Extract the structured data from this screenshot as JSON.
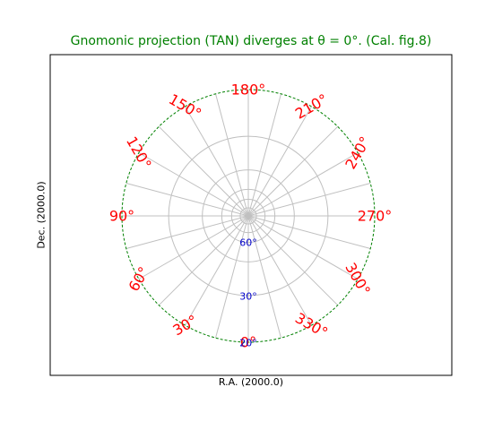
{
  "chart_data": {
    "type": "polar-graticule",
    "title": "Gnomonic projection (TAN) diverges at θ = 0°. (Cal. fig.8)",
    "xlabel": "R.A. (2000.0)",
    "ylabel": "Dec. (2000.0)",
    "projection": "TAN",
    "longitude_meridians_deg": [
      0,
      15,
      30,
      45,
      60,
      75,
      90,
      105,
      120,
      135,
      150,
      165,
      180,
      195,
      210,
      225,
      240,
      255,
      270,
      285,
      300,
      315,
      330,
      345
    ],
    "latitude_circles_deg": [
      80,
      70,
      60,
      45,
      30
    ],
    "border_latitude_deg": 20,
    "longitude_labels": [
      {
        "value": 0,
        "text": "0°"
      },
      {
        "value": 30,
        "text": "30°"
      },
      {
        "value": 60,
        "text": "60°"
      },
      {
        "value": 90,
        "text": "90°"
      },
      {
        "value": 120,
        "text": "120°"
      },
      {
        "value": 150,
        "text": "150°"
      },
      {
        "value": 180,
        "text": "180°"
      },
      {
        "value": 210,
        "text": "210°"
      },
      {
        "value": 240,
        "text": "240°"
      },
      {
        "value": 270,
        "text": "270°"
      },
      {
        "value": 300,
        "text": "300°"
      },
      {
        "value": 330,
        "text": "330°"
      }
    ],
    "latitude_labels": [
      {
        "value": 60,
        "text": "60°"
      },
      {
        "value": 30,
        "text": "30°"
      },
      {
        "value": 20,
        "text": "20°"
      }
    ],
    "colors": {
      "title": "#008000",
      "border": "#008000",
      "grid": "#c0c0c0",
      "longitude_labels": "#ff0000",
      "latitude_labels": "#0000cc"
    },
    "grid": true
  }
}
